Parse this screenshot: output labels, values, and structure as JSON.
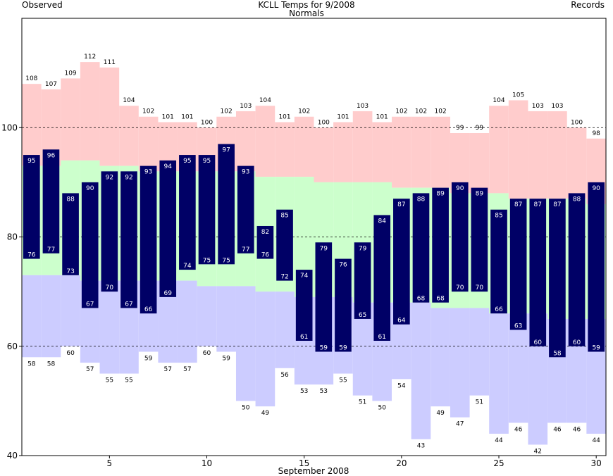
{
  "header": {
    "title": "KCLL Temps for 9/2008",
    "observed_label": "Observed",
    "normals_label": "Normals",
    "records_label": "Records"
  },
  "colors": {
    "observed": "#000066",
    "observed_text": "#ffffff",
    "normals": "#ccffcc",
    "record_high": "#ffcccc",
    "record_low": "#ccccff",
    "observed_label": "#000066",
    "normals_label": "#006600",
    "records_label": "#9966cc"
  },
  "chart_data": {
    "type": "bar",
    "xlabel": "September 2008",
    "x_ticks": [
      5,
      10,
      15,
      20,
      25,
      30
    ],
    "ylim": [
      40,
      120
    ],
    "y_ticks": [
      40,
      60,
      80,
      100
    ],
    "gridlines": [
      60,
      80,
      100
    ],
    "days": [
      1,
      2,
      3,
      4,
      5,
      6,
      7,
      8,
      9,
      10,
      11,
      12,
      13,
      14,
      15,
      16,
      17,
      18,
      19,
      20,
      21,
      22,
      23,
      24,
      25,
      26,
      27,
      28,
      29,
      30
    ],
    "observed_high": [
      95,
      96,
      88,
      90,
      92,
      92,
      93,
      94,
      95,
      95,
      97,
      93,
      82,
      85,
      74,
      79,
      76,
      79,
      84,
      87,
      88,
      89,
      90,
      89,
      85,
      87,
      87,
      87,
      88,
      90
    ],
    "observed_low": [
      76,
      77,
      73,
      67,
      70,
      67,
      66,
      69,
      74,
      75,
      75,
      77,
      76,
      72,
      61,
      59,
      59,
      65,
      61,
      64,
      68,
      68,
      70,
      70,
      66,
      63,
      60,
      58,
      60,
      59
    ],
    "normal_high": [
      93,
      93,
      94,
      94,
      93,
      93,
      92,
      92,
      92,
      92,
      92,
      92,
      91,
      91,
      91,
      90,
      90,
      90,
      90,
      89,
      89,
      89,
      88,
      88,
      88,
      87,
      87,
      87,
      87,
      86
    ],
    "normal_low": [
      73,
      73,
      73,
      72,
      72,
      72,
      72,
      72,
      72,
      71,
      71,
      71,
      70,
      70,
      69,
      69,
      69,
      68,
      68,
      68,
      68,
      67,
      67,
      67,
      66,
      66,
      66,
      65,
      65,
      65
    ],
    "record_high": [
      108,
      107,
      109,
      112,
      111,
      104,
      102,
      101,
      101,
      100,
      102,
      103,
      104,
      101,
      102,
      100,
      101,
      103,
      101,
      102,
      102,
      102,
      99,
      99,
      104,
      105,
      103,
      103,
      100,
      98
    ],
    "record_low": [
      58,
      58,
      60,
      57,
      55,
      55,
      59,
      57,
      57,
      60,
      59,
      50,
      49,
      56,
      53,
      53,
      55,
      51,
      50,
      54,
      43,
      49,
      47,
      51,
      44,
      46,
      42,
      46,
      46,
      44
    ]
  }
}
